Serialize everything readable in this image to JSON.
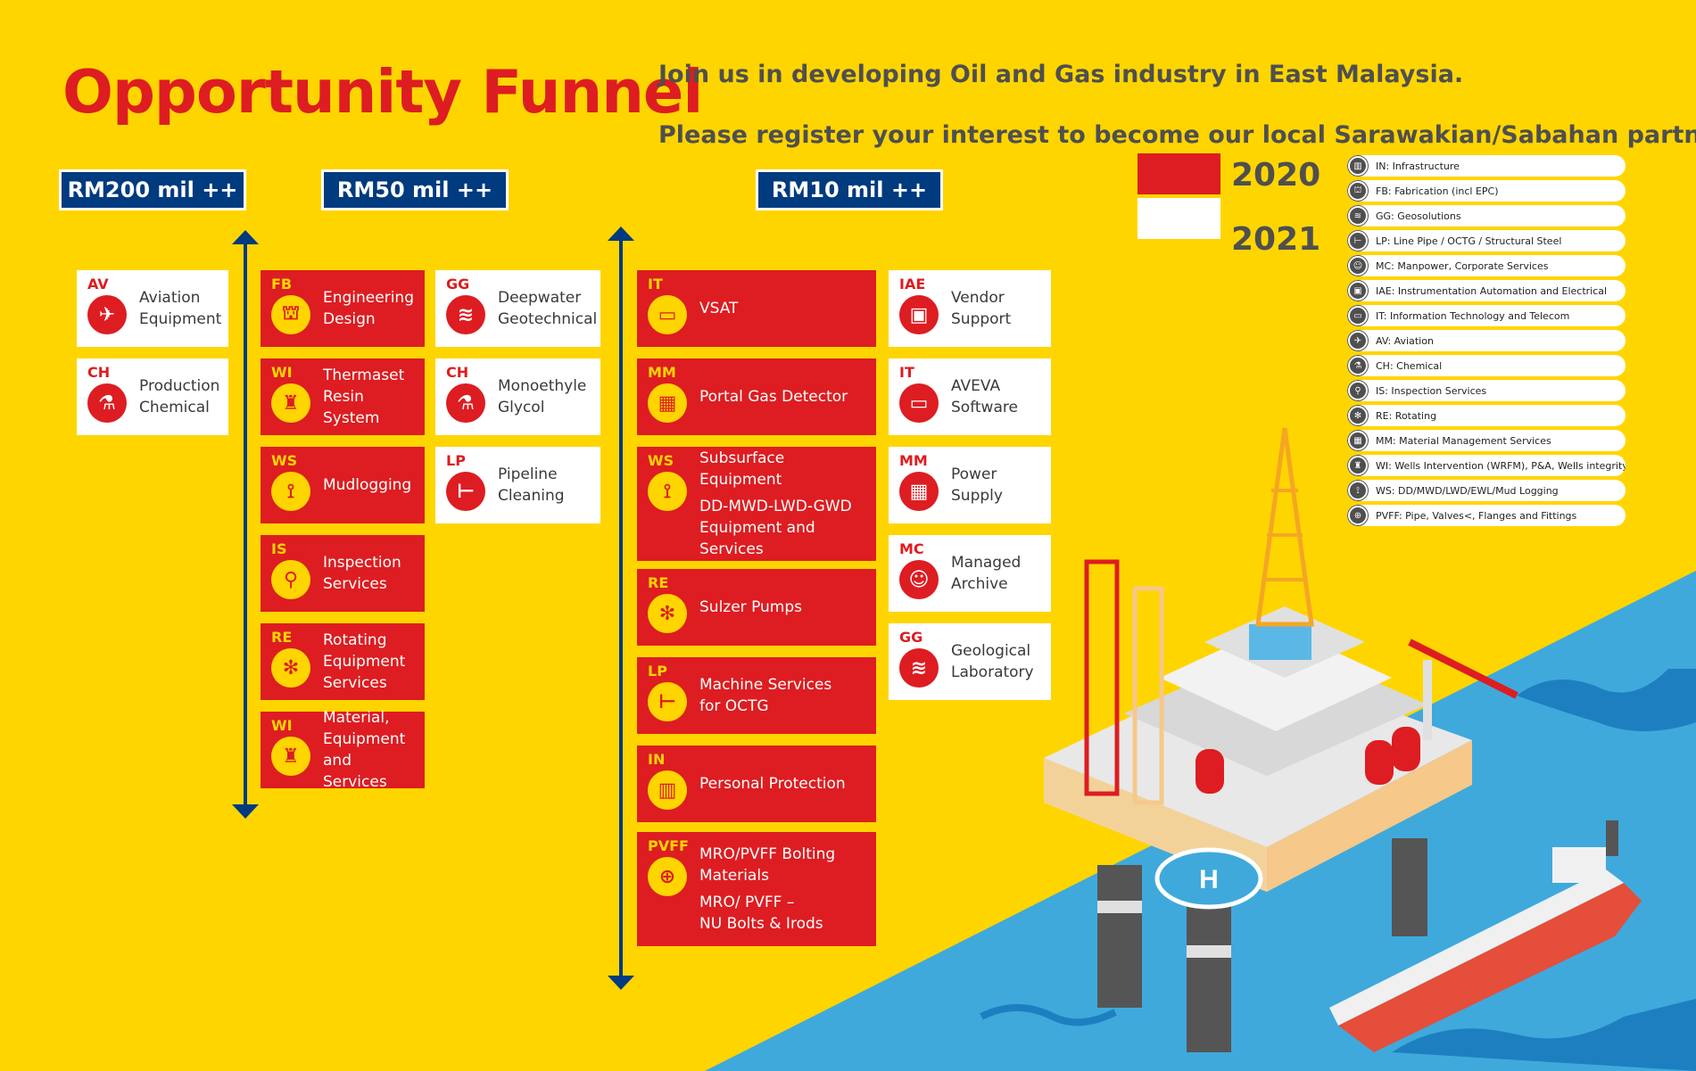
{
  "title": "Opportunity Funnel",
  "tagline": [
    "Join us in developing Oil and Gas industry in East Malaysia.",
    "Please register your interest to become our local Sarawakian/Sabahan partner."
  ],
  "tiers": [
    "RM200 mil ++",
    "RM50 mil ++",
    "RM10 mil ++"
  ],
  "years": {
    "y2020": "2020",
    "y2021": "2021",
    "color_2020": "#DD1D21",
    "color_2021": "#FFFFFF"
  },
  "colors": {
    "background": "#FFD500",
    "shell_red": "#DD1D21",
    "navy": "#003A7F",
    "sea": "#3FA9DC"
  },
  "column1": [
    {
      "code": "AV",
      "label": "Aviation\nEquipment",
      "icon": "helicopter-icon",
      "year": "2021"
    },
    {
      "code": "CH",
      "label": "Production\nChemical",
      "icon": "flask-icon",
      "year": "2021"
    }
  ],
  "column2": [
    {
      "code": "FB",
      "label": "Engineering\nDesign",
      "icon": "platform-icon",
      "year": "2020"
    },
    {
      "code": "WI",
      "label": "Thermaset\nResin System",
      "icon": "wellhead-icon",
      "year": "2020"
    },
    {
      "code": "WS",
      "label": "Mudlogging",
      "icon": "drill-bit-icon",
      "year": "2020"
    },
    {
      "code": "IS",
      "label": "Inspection\nServices",
      "icon": "magnifier-icon",
      "year": "2020"
    },
    {
      "code": "RE",
      "label": "Rotating\nEquipment\nServices",
      "icon": "fan-icon",
      "year": "2020"
    },
    {
      "code": "WI",
      "label": "Material,\nEquipment\nand Services",
      "icon": "wellhead-icon",
      "year": "2020"
    }
  ],
  "column3": [
    {
      "code": "GG",
      "label": "Deepwater\nGeotechnical",
      "icon": "strata-icon",
      "year": "2021"
    },
    {
      "code": "CH",
      "label": "Monoethyle\nGlycol",
      "icon": "flask-icon",
      "year": "2021"
    },
    {
      "code": "LP",
      "label": "Pipeline\nCleaning",
      "icon": "pipe-icon",
      "year": "2021"
    }
  ],
  "column4": [
    {
      "code": "IT",
      "label": "VSAT",
      "icon": "laptop-icon",
      "year": "2020"
    },
    {
      "code": "MM",
      "label": "Portal Gas Detector",
      "icon": "warehouse-icon",
      "year": "2020"
    },
    {
      "code": "WS",
      "label": "Subsurface Equipment",
      "sub": "DD-MWD-LWD-GWD\nEquipment and Services",
      "icon": "drill-bit-icon",
      "year": "2020"
    },
    {
      "code": "RE",
      "label": "Sulzer Pumps",
      "icon": "fan-icon",
      "year": "2020"
    },
    {
      "code": "LP",
      "label": "Machine Services\nfor OCTG",
      "icon": "pipe-icon",
      "year": "2020"
    },
    {
      "code": "IN",
      "label": "Personal Protection",
      "icon": "building-icon",
      "year": "2020"
    },
    {
      "code": "PVFF",
      "label": "MRO/PVFF Bolting\nMaterials",
      "sub": "MRO/ PVFF –\nNU Bolts & Irods",
      "icon": "valve-icon",
      "year": "2020"
    }
  ],
  "column5": [
    {
      "code": "IAE",
      "label": "Vendor\nSupport",
      "icon": "chip-icon",
      "year": "2021"
    },
    {
      "code": "IT",
      "label": "AVEVA\nSoftware",
      "icon": "laptop-icon",
      "year": "2021"
    },
    {
      "code": "MM",
      "label": "Power\nSupply",
      "icon": "warehouse-icon",
      "year": "2021"
    },
    {
      "code": "MC",
      "label": "Managed\nArchive",
      "icon": "people-icon",
      "year": "2021"
    },
    {
      "code": "GG",
      "label": "Geological\nLaboratory",
      "icon": "strata-icon",
      "year": "2021"
    }
  ],
  "legend": [
    {
      "text": "IN: Infrastructure",
      "icon": "building-icon"
    },
    {
      "text": "FB: Fabrication (incl EPC)",
      "icon": "platform-icon"
    },
    {
      "text": "GG: Geosolutions",
      "icon": "strata-icon"
    },
    {
      "text": "LP: Line Pipe / OCTG / Structural Steel",
      "icon": "pipe-icon"
    },
    {
      "text": "MC: Manpower, Corporate Services",
      "icon": "people-icon"
    },
    {
      "text": "IAE: Instrumentation Automation and Electrical",
      "icon": "chip-icon"
    },
    {
      "text": "IT: Information Technology and Telecom",
      "icon": "laptop-icon"
    },
    {
      "text": "AV: Aviation",
      "icon": "helicopter-icon"
    },
    {
      "text": "CH: Chemical",
      "icon": "flask-icon"
    },
    {
      "text": "IS: Inspection Services",
      "icon": "magnifier-icon"
    },
    {
      "text": "RE: Rotating",
      "icon": "fan-icon"
    },
    {
      "text": "MM: Material Management Services",
      "icon": "warehouse-icon"
    },
    {
      "text": "WI: Wells Intervention (WRFM), P&A, Wells integrity",
      "icon": "wellhead-icon"
    },
    {
      "text": "WS: DD/MWD/LWD/EWL/Mud Logging",
      "icon": "drill-bit-icon"
    },
    {
      "text": "PVFF: Pipe, Valves<, Flanges and Fittings",
      "icon": "valve-icon"
    }
  ],
  "illustration": {
    "helipad_letter": "H"
  }
}
